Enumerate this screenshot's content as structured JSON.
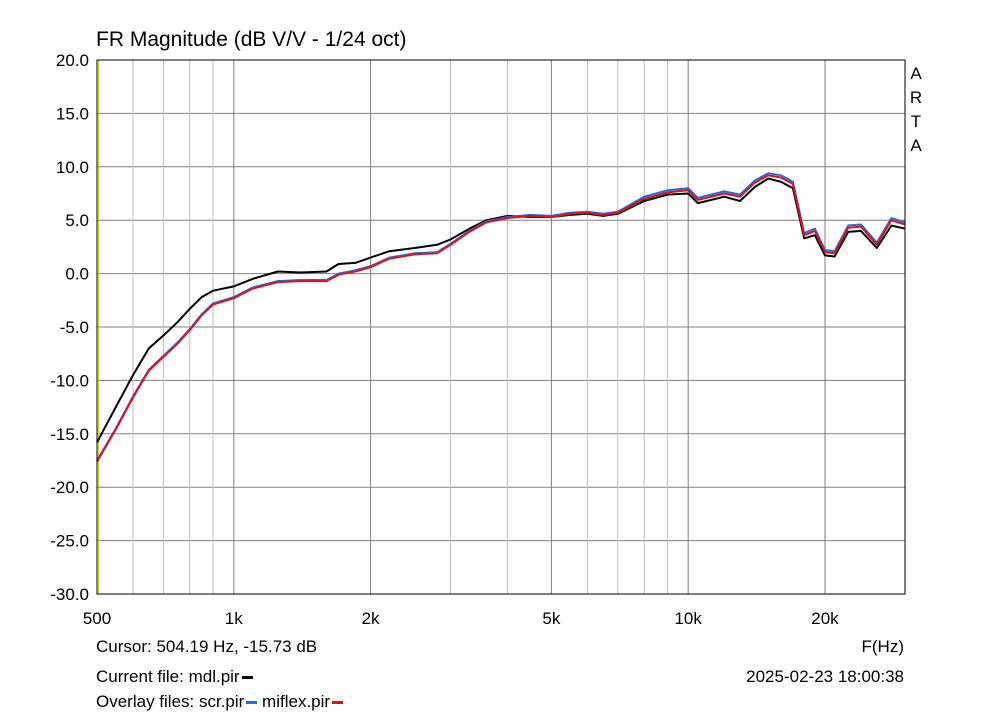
{
  "title": "FR Magnitude (dB V/V - 1/24 oct)",
  "brand": [
    "A",
    "R",
    "T",
    "A"
  ],
  "cursor_text": "Cursor: 504.19 Hz, -15.73 dB",
  "x_unit_label": "F(Hz)",
  "current_file_label": "Current file: mdl.pir",
  "overlay_label": "Overlay files: scr.pir",
  "overlay_file2": "miflex.pir",
  "timestamp": "2025-02-23  18:00:38",
  "colors": {
    "mdl": "#000000",
    "scr": "#1f6fd8",
    "miflex": "#e01020",
    "grid_major": "#808080",
    "grid_minor": "#c0c0c0",
    "cursor_line": "#c8c800"
  },
  "chart_data": {
    "type": "line",
    "x_scale": "log",
    "xlim": [
      500,
      30000
    ],
    "ylim": [
      -30,
      20
    ],
    "grid": true,
    "y_ticks": [
      20,
      15,
      10,
      5,
      0,
      -5,
      -10,
      -15,
      -20,
      -25,
      -30
    ],
    "y_tick_labels": [
      "20.0",
      "15.0",
      "10.0",
      "5.0",
      "0.0",
      "-5.0",
      "-10.0",
      "-15.0",
      "-20.0",
      "-25.0",
      "-30.0"
    ],
    "x_ticks": [
      500,
      1000,
      2000,
      5000,
      10000,
      20000
    ],
    "x_tick_labels": [
      "500",
      "1k",
      "2k",
      "5k",
      "10k",
      "20k"
    ],
    "x_minor_grid": [
      600,
      700,
      800,
      900,
      3000,
      4000,
      6000,
      7000,
      8000,
      9000
    ],
    "series": [
      {
        "name": "mdl.pir",
        "color": "#000000",
        "points": [
          [
            500,
            -15.8
          ],
          [
            550,
            -12.5
          ],
          [
            600,
            -9.5
          ],
          [
            650,
            -7.0
          ],
          [
            700,
            -5.8
          ],
          [
            750,
            -4.6
          ],
          [
            800,
            -3.3
          ],
          [
            850,
            -2.2
          ],
          [
            900,
            -1.6
          ],
          [
            1000,
            -1.2
          ],
          [
            1100,
            -0.5
          ],
          [
            1250,
            0.2
          ],
          [
            1400,
            0.1
          ],
          [
            1600,
            0.2
          ],
          [
            1700,
            0.9
          ],
          [
            1850,
            1.0
          ],
          [
            2000,
            1.5
          ],
          [
            2200,
            2.1
          ],
          [
            2500,
            2.4
          ],
          [
            2800,
            2.7
          ],
          [
            3000,
            3.2
          ],
          [
            3300,
            4.2
          ],
          [
            3600,
            5.0
          ],
          [
            4000,
            5.4
          ],
          [
            4500,
            5.3
          ],
          [
            5000,
            5.3
          ],
          [
            5500,
            5.5
          ],
          [
            6000,
            5.6
          ],
          [
            6500,
            5.4
          ],
          [
            7000,
            5.6
          ],
          [
            8000,
            6.8
          ],
          [
            9000,
            7.4
          ],
          [
            10000,
            7.5
          ],
          [
            10500,
            6.6
          ],
          [
            11500,
            7.0
          ],
          [
            12000,
            7.2
          ],
          [
            13000,
            6.8
          ],
          [
            14000,
            8.1
          ],
          [
            15000,
            8.9
          ],
          [
            16000,
            8.6
          ],
          [
            17000,
            8.0
          ],
          [
            18000,
            3.3
          ],
          [
            19000,
            3.6
          ],
          [
            20000,
            1.7
          ],
          [
            21000,
            1.6
          ],
          [
            22500,
            3.9
          ],
          [
            24000,
            4.0
          ],
          [
            26000,
            2.4
          ],
          [
            28000,
            4.5
          ],
          [
            30000,
            4.2
          ]
        ]
      },
      {
        "name": "scr.pir",
        "color": "#1f6fd8",
        "points": [
          [
            500,
            -17.5
          ],
          [
            550,
            -14.5
          ],
          [
            600,
            -11.5
          ],
          [
            650,
            -9.0
          ],
          [
            700,
            -7.7
          ],
          [
            750,
            -6.5
          ],
          [
            800,
            -5.2
          ],
          [
            850,
            -3.8
          ],
          [
            900,
            -2.8
          ],
          [
            1000,
            -2.2
          ],
          [
            1100,
            -1.3
          ],
          [
            1250,
            -0.7
          ],
          [
            1400,
            -0.6
          ],
          [
            1600,
            -0.6
          ],
          [
            1700,
            0.0
          ],
          [
            1850,
            0.3
          ],
          [
            2000,
            0.7
          ],
          [
            2200,
            1.5
          ],
          [
            2500,
            1.9
          ],
          [
            2800,
            2.0
          ],
          [
            3000,
            2.8
          ],
          [
            3300,
            4.0
          ],
          [
            3600,
            4.9
          ],
          [
            4000,
            5.3
          ],
          [
            4500,
            5.5
          ],
          [
            5000,
            5.4
          ],
          [
            5500,
            5.7
          ],
          [
            6000,
            5.8
          ],
          [
            6500,
            5.6
          ],
          [
            7000,
            5.8
          ],
          [
            8000,
            7.2
          ],
          [
            9000,
            7.8
          ],
          [
            10000,
            8.0
          ],
          [
            10500,
            7.1
          ],
          [
            11500,
            7.5
          ],
          [
            12000,
            7.7
          ],
          [
            13000,
            7.4
          ],
          [
            14000,
            8.7
          ],
          [
            15000,
            9.4
          ],
          [
            16000,
            9.2
          ],
          [
            17000,
            8.6
          ],
          [
            18000,
            3.8
          ],
          [
            19000,
            4.2
          ],
          [
            20000,
            2.2
          ],
          [
            21000,
            2.1
          ],
          [
            22500,
            4.5
          ],
          [
            24000,
            4.6
          ],
          [
            26000,
            2.9
          ],
          [
            28000,
            5.2
          ],
          [
            30000,
            4.8
          ]
        ]
      },
      {
        "name": "miflex.pir",
        "color": "#e01020",
        "points": [
          [
            500,
            -17.6
          ],
          [
            550,
            -14.6
          ],
          [
            600,
            -11.6
          ],
          [
            650,
            -9.1
          ],
          [
            700,
            -7.8
          ],
          [
            750,
            -6.6
          ],
          [
            800,
            -5.3
          ],
          [
            850,
            -3.9
          ],
          [
            900,
            -2.9
          ],
          [
            1000,
            -2.3
          ],
          [
            1100,
            -1.4
          ],
          [
            1250,
            -0.8
          ],
          [
            1400,
            -0.7
          ],
          [
            1600,
            -0.7
          ],
          [
            1700,
            -0.1
          ],
          [
            1850,
            0.2
          ],
          [
            2000,
            0.6
          ],
          [
            2200,
            1.4
          ],
          [
            2500,
            1.8
          ],
          [
            2800,
            1.9
          ],
          [
            3000,
            2.7
          ],
          [
            3300,
            3.9
          ],
          [
            3600,
            4.8
          ],
          [
            4000,
            5.2
          ],
          [
            4500,
            5.4
          ],
          [
            5000,
            5.3
          ],
          [
            5500,
            5.6
          ],
          [
            6000,
            5.7
          ],
          [
            6500,
            5.5
          ],
          [
            7000,
            5.7
          ],
          [
            8000,
            7.0
          ],
          [
            9000,
            7.6
          ],
          [
            10000,
            7.8
          ],
          [
            10500,
            6.9
          ],
          [
            11500,
            7.3
          ],
          [
            12000,
            7.5
          ],
          [
            13000,
            7.2
          ],
          [
            14000,
            8.5
          ],
          [
            15000,
            9.2
          ],
          [
            16000,
            9.0
          ],
          [
            17000,
            8.4
          ],
          [
            18000,
            3.6
          ],
          [
            19000,
            4.0
          ],
          [
            20000,
            2.0
          ],
          [
            21000,
            1.9
          ],
          [
            22500,
            4.3
          ],
          [
            24000,
            4.4
          ],
          [
            26000,
            2.7
          ],
          [
            28000,
            5.0
          ],
          [
            30000,
            4.6
          ]
        ]
      }
    ]
  }
}
